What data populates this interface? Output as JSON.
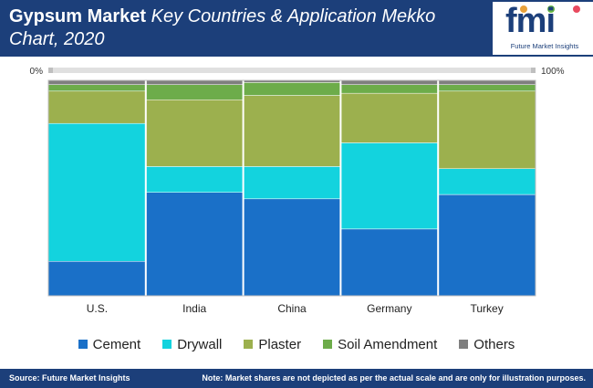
{
  "header": {
    "title_bold": "Gypsum Market",
    "title_italic": "Key Countries & Application Mekko Chart, 2020"
  },
  "logo": {
    "letters": "fmi",
    "tagline": "Future Market Insights",
    "dot_colors": [
      "#e8a13a",
      "#67b844",
      "#e84a5f"
    ]
  },
  "chart_data": {
    "type": "bar",
    "stacked": "percent",
    "categories": [
      "U.S.",
      "India",
      "China",
      "Germany",
      "Turkey"
    ],
    "axis_start_label": "0%",
    "axis_end_label": "100%",
    "grid": false,
    "legend_position": "bottom",
    "series": [
      {
        "name": "Cement",
        "color": "#1a70c8",
        "values": [
          16,
          48,
          45,
          31,
          47
        ]
      },
      {
        "name": "Drywall",
        "color": "#13d3de",
        "values": [
          64,
          12,
          15,
          40,
          12
        ]
      },
      {
        "name": "Plaster",
        "color": "#9cb04e",
        "values": [
          15,
          31,
          33,
          23,
          36
        ]
      },
      {
        "name": "Soil Amendment",
        "color": "#6dac4a",
        "values": [
          3,
          7,
          6,
          4,
          3
        ]
      },
      {
        "name": "Others",
        "color": "#7f7f7f",
        "values": [
          2,
          2,
          1,
          2,
          2
        ]
      }
    ]
  },
  "footer": {
    "source": "Source: Future Market Insights",
    "note": "Note: Market shares are not depicted as per the actual scale and are only for illustration purposes."
  }
}
